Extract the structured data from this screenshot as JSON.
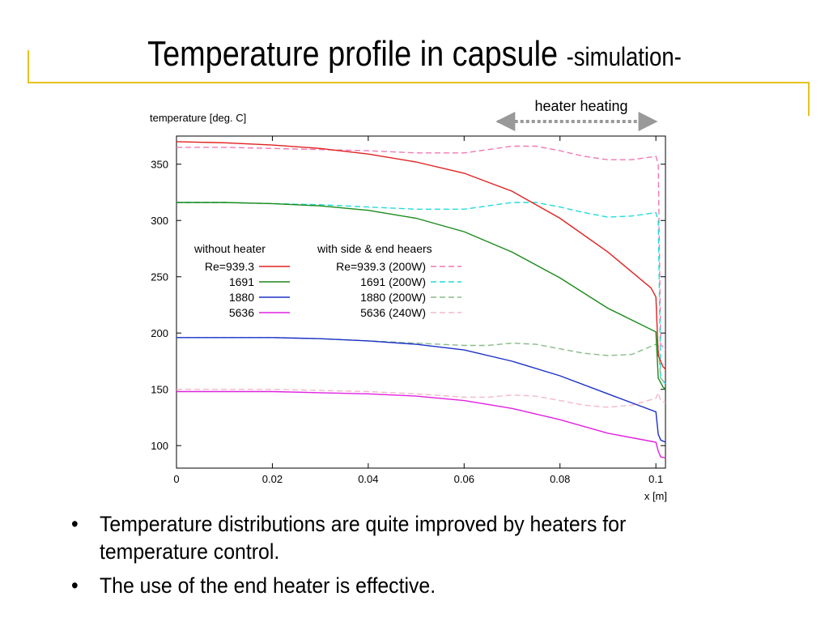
{
  "slide": {
    "title_main": "Temperature profile  in capsule ",
    "title_sub": "-simulation-",
    "bullets": [
      "Temperature distributions are quite improved by heaters for temperature control.",
      "The use of the end heater is effective."
    ],
    "bullet_symbol": "•",
    "accent_color": "#e6c21e"
  },
  "chart_data": {
    "type": "line",
    "ylabel": "temperature [deg. C]",
    "xlabel": "x [m]",
    "xlim": [
      0,
      0.102
    ],
    "ylim": [
      80,
      375
    ],
    "xticks": [
      0,
      0.02,
      0.04,
      0.06,
      0.08,
      0.1
    ],
    "xtick_labels": [
      "0",
      "0.02",
      "0.04",
      "0.06",
      "0.08",
      "0.1"
    ],
    "yticks": [
      100,
      150,
      200,
      250,
      300,
      350
    ],
    "ytick_labels": [
      "100",
      "150",
      "200",
      "250",
      "300",
      "350"
    ],
    "grid": false,
    "annotation": {
      "text": "heater heating",
      "x_from": 0.067,
      "x_to": 0.1
    },
    "legend": {
      "placement": "center-left",
      "group1_title": "without heater",
      "group2_title": "with side & end heaers"
    },
    "series": [
      {
        "key": "s1",
        "name": "Re=939.3",
        "group": 1,
        "color": "#e02020",
        "dash": "solid",
        "x": [
          0,
          0.01,
          0.02,
          0.03,
          0.04,
          0.05,
          0.06,
          0.07,
          0.08,
          0.09,
          0.099,
          0.1,
          0.1005,
          0.1015,
          0.102
        ],
        "y": [
          370,
          369,
          367,
          364,
          359,
          352,
          342,
          326,
          302,
          272,
          240,
          232,
          180,
          170,
          168
        ]
      },
      {
        "key": "s2",
        "name": "1691",
        "group": 1,
        "color": "#1a8a1a",
        "dash": "solid",
        "x": [
          0,
          0.01,
          0.02,
          0.03,
          0.04,
          0.05,
          0.06,
          0.07,
          0.08,
          0.09,
          0.1,
          0.1005,
          0.1015,
          0.102
        ],
        "y": [
          316,
          316,
          315,
          313,
          309,
          302,
          290,
          272,
          249,
          222,
          201,
          160,
          152,
          150
        ]
      },
      {
        "key": "s3",
        "name": "1880",
        "group": 1,
        "color": "#1a30c8",
        "dash": "solid",
        "x": [
          0,
          0.01,
          0.02,
          0.03,
          0.04,
          0.05,
          0.06,
          0.07,
          0.08,
          0.09,
          0.1,
          0.1005,
          0.101,
          0.102
        ],
        "y": [
          196,
          196,
          196,
          195,
          193,
          190,
          185,
          175,
          162,
          146,
          130,
          110,
          105,
          103
        ]
      },
      {
        "key": "s4",
        "name": "5636",
        "group": 1,
        "color": "#e020e0",
        "dash": "solid",
        "x": [
          0,
          0.01,
          0.02,
          0.03,
          0.04,
          0.05,
          0.06,
          0.07,
          0.08,
          0.09,
          0.1,
          0.1005,
          0.101,
          0.102
        ],
        "y": [
          148,
          148,
          148,
          147,
          146,
          144,
          140,
          133,
          123,
          111,
          103,
          95,
          90,
          89
        ]
      },
      {
        "key": "s5",
        "name": "Re=939.3 (200W)",
        "group": 2,
        "color": "#f078b4",
        "dash": "dashed",
        "x": [
          0,
          0.01,
          0.02,
          0.03,
          0.04,
          0.05,
          0.06,
          0.065,
          0.07,
          0.075,
          0.08,
          0.085,
          0.09,
          0.095,
          0.1,
          0.1005,
          0.101,
          0.102
        ],
        "y": [
          365,
          365,
          364,
          363,
          362,
          360,
          360,
          363,
          366,
          366,
          362,
          357,
          354,
          354,
          357,
          350,
          190,
          185
        ]
      },
      {
        "key": "s6",
        "name": "1691 (200W)",
        "group": 2,
        "color": "#20dcdc",
        "dash": "dashed",
        "x": [
          0,
          0.01,
          0.02,
          0.03,
          0.04,
          0.05,
          0.06,
          0.065,
          0.07,
          0.075,
          0.08,
          0.085,
          0.09,
          0.095,
          0.1,
          0.1005,
          0.101,
          0.102
        ],
        "y": [
          316,
          316,
          315,
          314,
          312,
          310,
          310,
          313,
          316,
          316,
          312,
          307,
          303,
          304,
          307,
          300,
          160,
          155
        ]
      },
      {
        "key": "s7",
        "name": "1880 (200W)",
        "group": 2,
        "color": "#88bb88",
        "dash": "dashed",
        "x": [
          0,
          0.01,
          0.02,
          0.03,
          0.04,
          0.05,
          0.06,
          0.065,
          0.07,
          0.075,
          0.08,
          0.085,
          0.09,
          0.095,
          0.1,
          0.1005,
          0.101,
          0.102
        ],
        "y": [
          196,
          196,
          196,
          195,
          193,
          191,
          189,
          189,
          191,
          190,
          186,
          182,
          180,
          181,
          190,
          188,
          160,
          155
        ]
      },
      {
        "key": "s8",
        "name": "5636 (240W)",
        "group": 2,
        "color": "#f4b8c8",
        "dash": "dashed",
        "x": [
          0,
          0.01,
          0.02,
          0.03,
          0.04,
          0.05,
          0.06,
          0.065,
          0.07,
          0.075,
          0.08,
          0.085,
          0.09,
          0.095,
          0.1,
          0.1005,
          0.101,
          0.102
        ],
        "y": [
          150,
          150,
          150,
          149,
          148,
          146,
          143,
          143,
          145,
          144,
          140,
          136,
          134,
          136,
          142,
          147,
          140,
          138
        ]
      }
    ]
  }
}
